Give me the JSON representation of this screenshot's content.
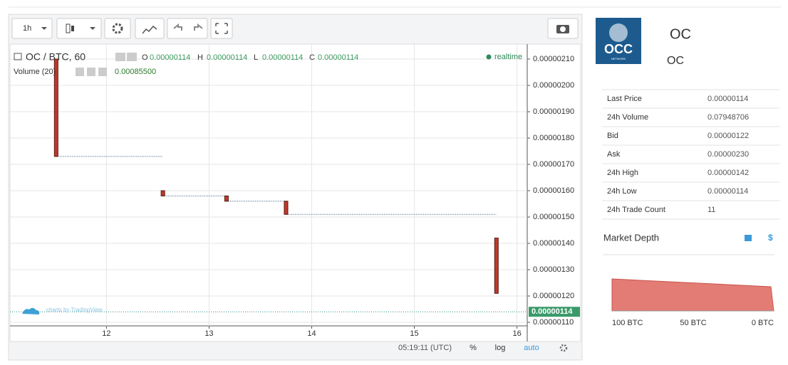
{
  "toolbar": {
    "interval": "1h"
  },
  "legend": {
    "symbol": "OC / BTC, 60",
    "open_label": "O",
    "open": "0.00000114",
    "high_label": "H",
    "high": "0.00000114",
    "low_label": "L",
    "low": "0.00000114",
    "close_label": "C",
    "close": "0.00000114",
    "volume_label": "Volume (20)",
    "volume": "0.00085500",
    "status": "realtime"
  },
  "chart_data": {
    "type": "candlestick",
    "x": [
      11.51,
      12.55,
      13.17,
      13.75,
      15.8
    ],
    "open": [
      2.1e-06,
      1.6e-06,
      1.58e-06,
      1.56e-06,
      1.42e-06
    ],
    "high": [
      2.1e-06,
      1.6e-06,
      1.58e-06,
      1.56e-06,
      1.42e-06
    ],
    "low": [
      1.73e-06,
      1.58e-06,
      1.56e-06,
      1.51e-06,
      1.21e-06
    ],
    "close": [
      1.73e-06,
      1.58e-06,
      1.56e-06,
      1.51e-06,
      1.21e-06
    ],
    "color": "#c0392b",
    "xlim": [
      11.06,
      16.1
    ],
    "xticks": [
      12,
      13,
      14,
      15,
      16
    ],
    "ylim": [
      1.0865e-06,
      2.1567e-06
    ],
    "yticks": [
      {
        "value": 2.1e-06,
        "label": "0.00000210"
      },
      {
        "value": 2e-06,
        "label": "0.00000200"
      },
      {
        "value": 1.9e-06,
        "label": "0.00000190"
      },
      {
        "value": 1.8e-06,
        "label": "0.00000180"
      },
      {
        "value": 1.7e-06,
        "label": "0.00000170"
      },
      {
        "value": 1.6e-06,
        "label": "0.00000160"
      },
      {
        "value": 1.5e-06,
        "label": "0.00000150"
      },
      {
        "value": 1.4e-06,
        "label": "0.00000140"
      },
      {
        "value": 1.3e-06,
        "label": "0.00000130"
      },
      {
        "value": 1.2e-06,
        "label": "0.00000120"
      },
      {
        "value": 1.1e-06,
        "label": "0.00000110"
      }
    ],
    "last_price": {
      "value": 1.14e-06,
      "label": "0.00000114"
    },
    "grid": true
  },
  "watermark": "charts by TradingView",
  "footer": {
    "time": "05:19:11 (UTC)",
    "percent": "%",
    "log": "log",
    "auto": "auto"
  },
  "market": {
    "logo_text": "OCC",
    "logo_sub": "NETWORK",
    "title": "OC",
    "subtitle": "OC",
    "rows": [
      [
        "Last Price",
        "0.00000114"
      ],
      [
        "24h Volume",
        "0.07948706"
      ],
      [
        "Bid",
        "0.00000122"
      ],
      [
        "Ask",
        "0.00000230"
      ],
      [
        "24h High",
        "0.00000142"
      ],
      [
        "24h Low",
        "0.00000114"
      ],
      [
        "24h Trade Count",
        "11"
      ]
    ],
    "depth_title": "Market Depth",
    "depth_labels": [
      "100 BTC",
      "50 BTC",
      "0 BTC"
    ]
  }
}
